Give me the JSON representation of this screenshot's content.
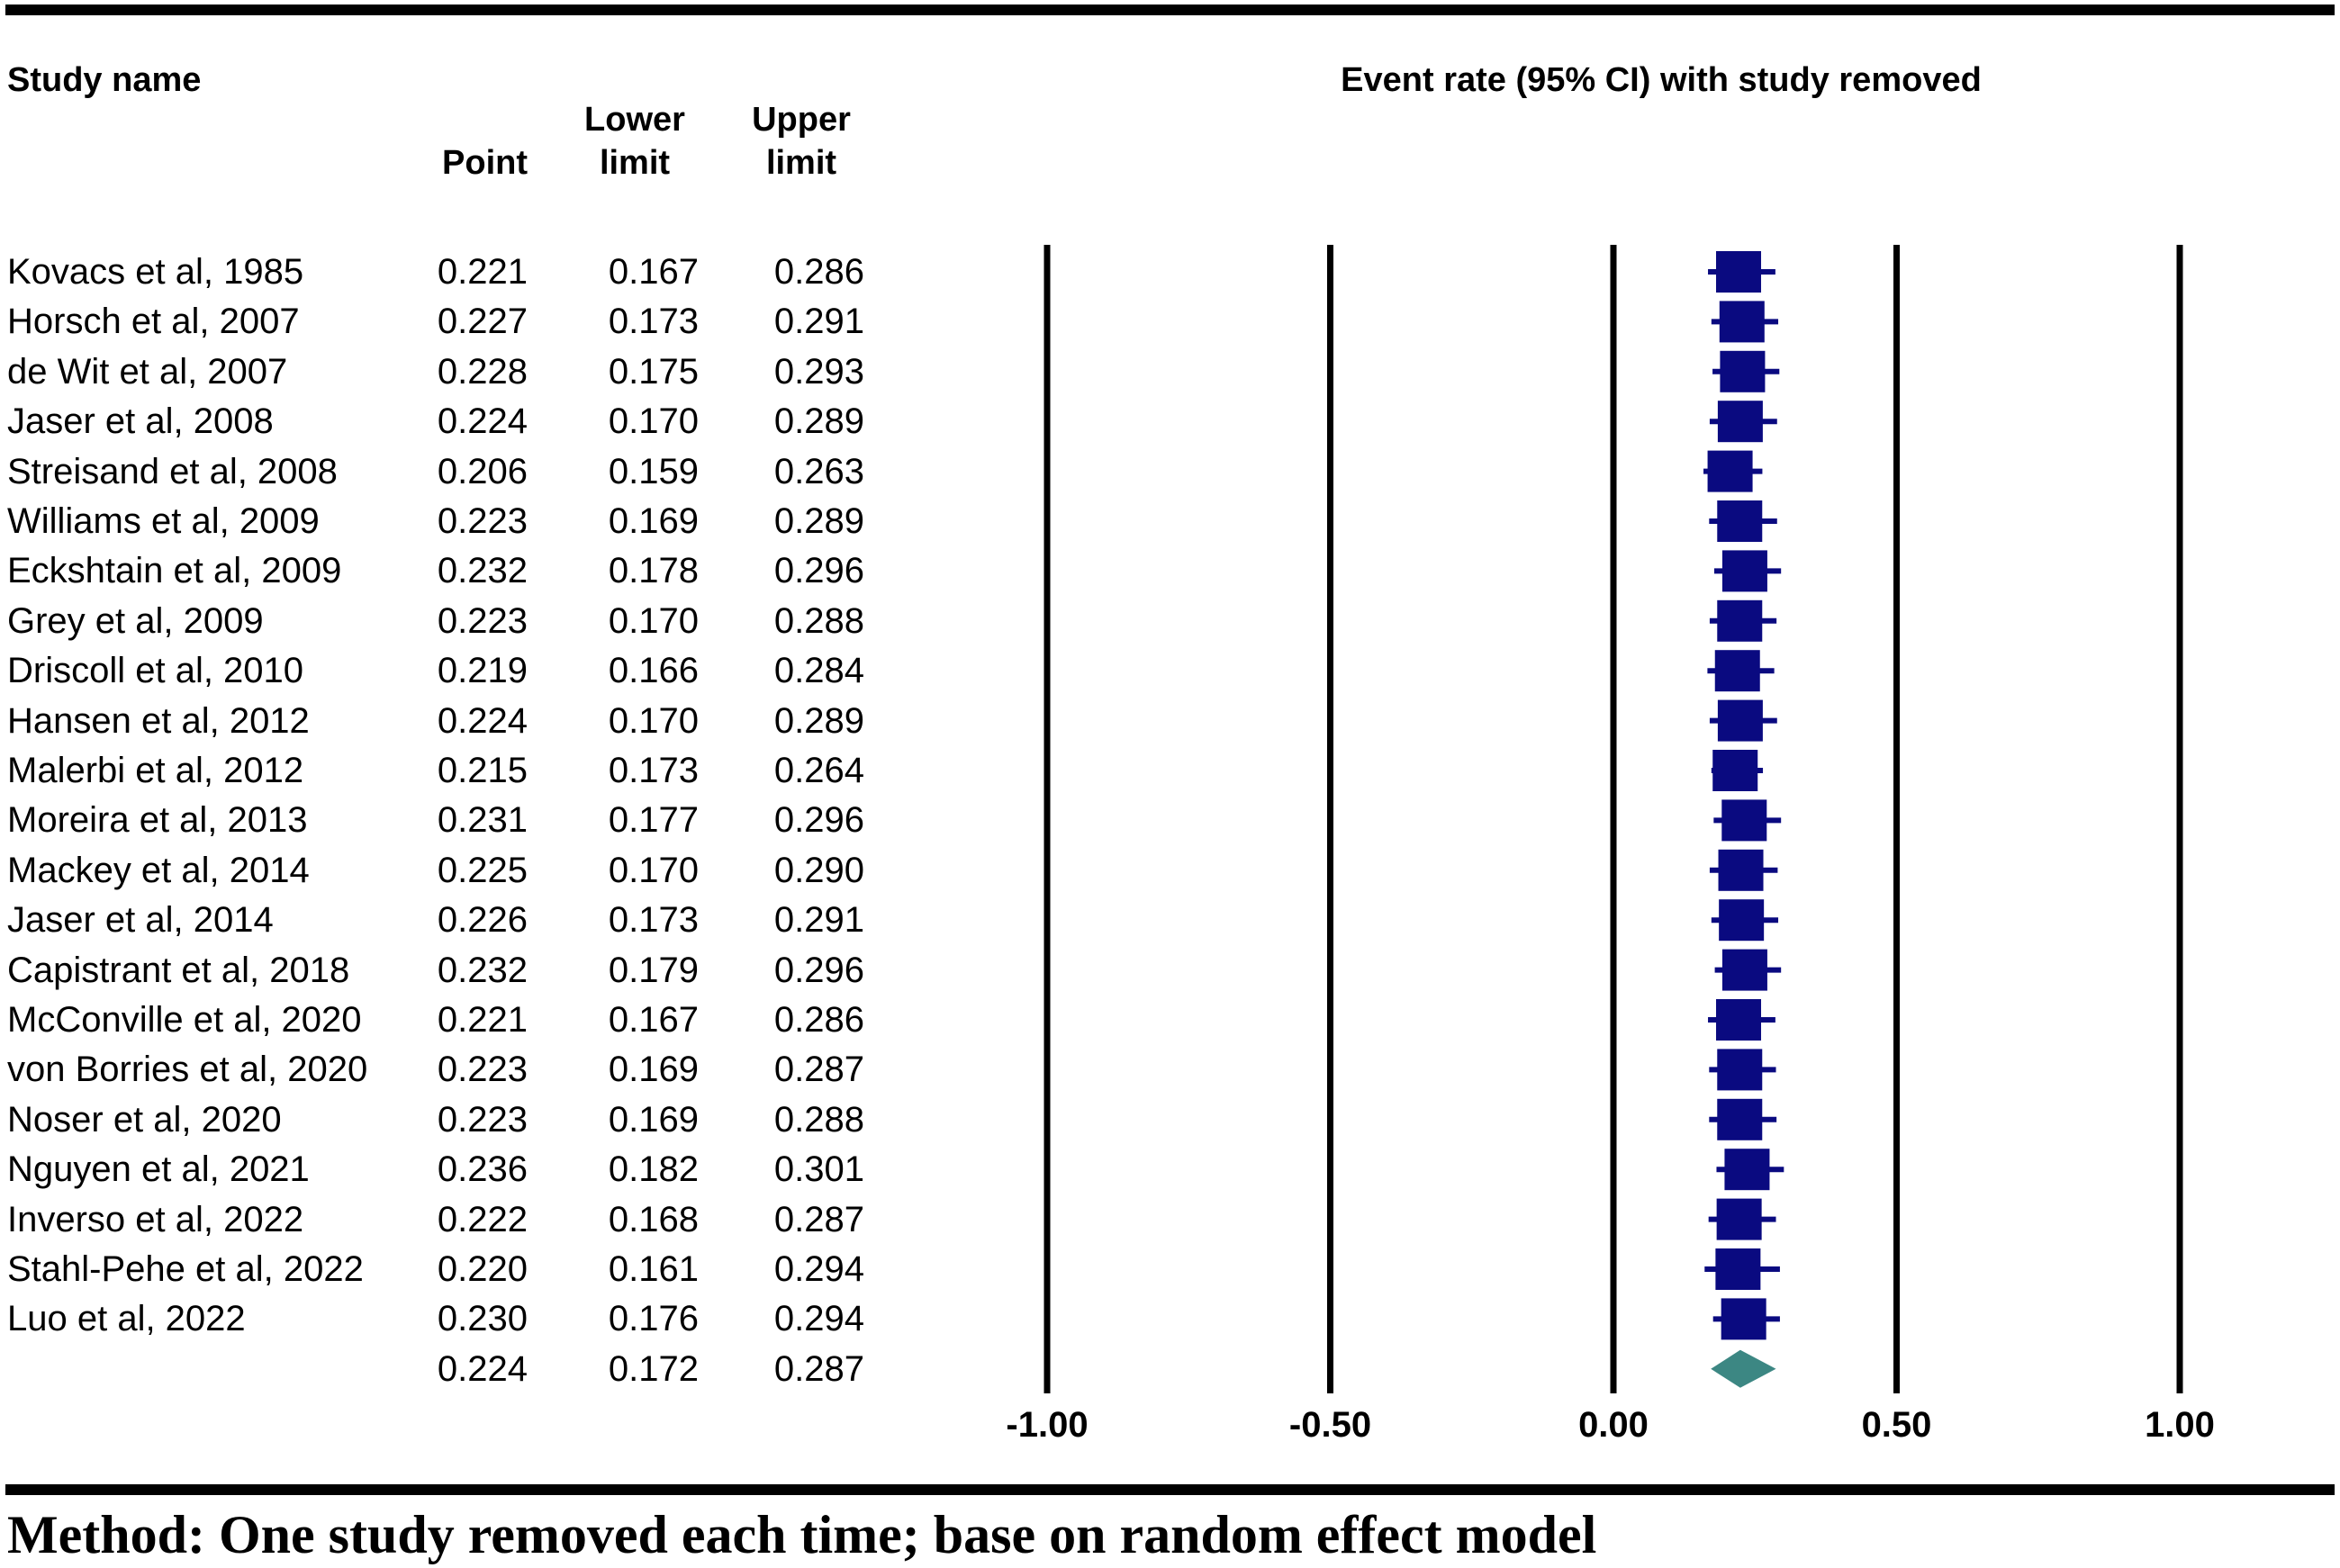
{
  "colors": {
    "marker": "#0a0a80",
    "summary_diamond": "#3c8783",
    "axis_lines": "#000000"
  },
  "headers": {
    "study_name": "Study name",
    "point": "Point",
    "lower_line1": "Lower",
    "lower_line2": "limit",
    "upper_line1": "Upper",
    "upper_line2": "limit",
    "plot_title": "Event rate (95% CI) with study removed"
  },
  "footnote": "Method: One study removed each time; base on random effect model",
  "chart_data": {
    "type": "forest",
    "title": "Event rate (95% CI) with study removed",
    "xlim": [
      -1.0,
      1.0
    ],
    "x_ticks": [
      -1.0,
      -0.5,
      0.0,
      0.5,
      1.0
    ],
    "x_tick_labels": [
      "-1.00",
      "-0.50",
      "0.00",
      "0.50",
      "1.00"
    ],
    "studies": [
      {
        "name": "Kovacs et al, 1985",
        "point": "0.221",
        "lower": "0.167",
        "upper": "0.286"
      },
      {
        "name": "Horsch et al, 2007",
        "point": "0.227",
        "lower": "0.173",
        "upper": "0.291"
      },
      {
        "name": "de Wit et al, 2007",
        "point": "0.228",
        "lower": "0.175",
        "upper": "0.293"
      },
      {
        "name": "Jaser et al, 2008",
        "point": "0.224",
        "lower": "0.170",
        "upper": "0.289"
      },
      {
        "name": "Streisand et al, 2008",
        "point": "0.206",
        "lower": "0.159",
        "upper": "0.263"
      },
      {
        "name": "Williams et al, 2009",
        "point": "0.223",
        "lower": "0.169",
        "upper": "0.289"
      },
      {
        "name": "Eckshtain et al, 2009",
        "point": "0.232",
        "lower": "0.178",
        "upper": "0.296"
      },
      {
        "name": "Grey et al, 2009",
        "point": "0.223",
        "lower": "0.170",
        "upper": "0.288"
      },
      {
        "name": "Driscoll et al, 2010",
        "point": "0.219",
        "lower": "0.166",
        "upper": "0.284"
      },
      {
        "name": "Hansen et al, 2012",
        "point": "0.224",
        "lower": "0.170",
        "upper": "0.289"
      },
      {
        "name": "Malerbi et al, 2012",
        "point": "0.215",
        "lower": "0.173",
        "upper": "0.264"
      },
      {
        "name": "Moreira et al, 2013",
        "point": "0.231",
        "lower": "0.177",
        "upper": "0.296"
      },
      {
        "name": "Mackey et al, 2014",
        "point": "0.225",
        "lower": "0.170",
        "upper": "0.290"
      },
      {
        "name": "Jaser et al, 2014",
        "point": "0.226",
        "lower": "0.173",
        "upper": "0.291"
      },
      {
        "name": "Capistrant et al, 2018",
        "point": "0.232",
        "lower": "0.179",
        "upper": "0.296"
      },
      {
        "name": "McConville et al, 2020",
        "point": "0.221",
        "lower": "0.167",
        "upper": "0.286"
      },
      {
        "name": "von Borries et al, 2020",
        "point": "0.223",
        "lower": "0.169",
        "upper": "0.287"
      },
      {
        "name": "Noser et al, 2020",
        "point": "0.223",
        "lower": "0.169",
        "upper": "0.288"
      },
      {
        "name": "Nguyen et al, 2021",
        "point": "0.236",
        "lower": "0.182",
        "upper": "0.301"
      },
      {
        "name": "Inverso et al, 2022",
        "point": "0.222",
        "lower": "0.168",
        "upper": "0.287"
      },
      {
        "name": "Stahl-Pehe et al, 2022",
        "point": "0.220",
        "lower": "0.161",
        "upper": "0.294"
      },
      {
        "name": "Luo et al, 2022",
        "point": "0.230",
        "lower": "0.176",
        "upper": "0.294"
      }
    ],
    "summary": {
      "name": "",
      "point": "0.224",
      "lower": "0.172",
      "upper": "0.287"
    }
  }
}
